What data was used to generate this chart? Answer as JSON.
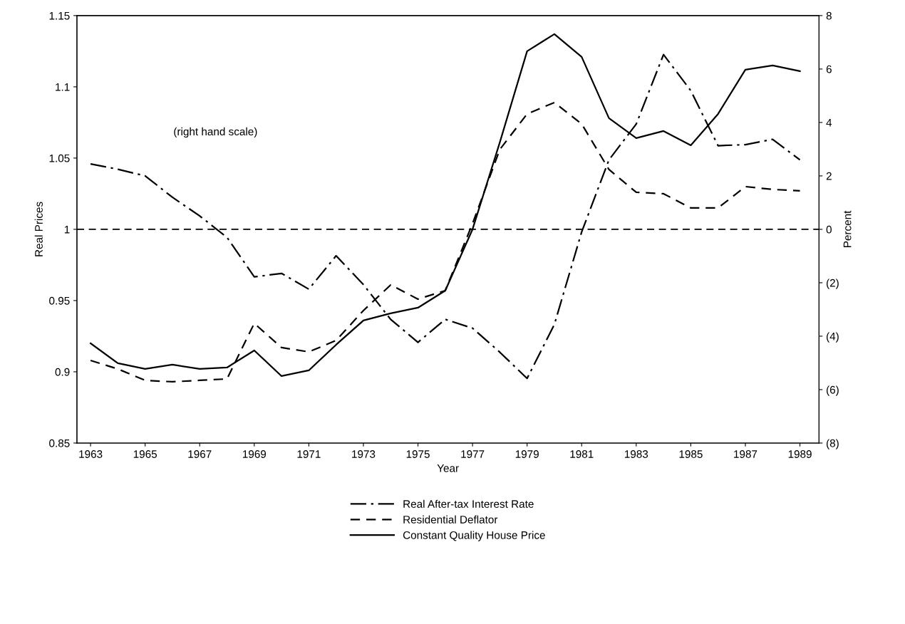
{
  "chart_data": {
    "type": "line",
    "xlabel": "Year",
    "ylabel": "Real Prices",
    "y2label": "Percent",
    "x": [
      1963,
      1964,
      1965,
      1966,
      1967,
      1968,
      1969,
      1970,
      1971,
      1972,
      1973,
      1974,
      1975,
      1976,
      1977,
      1978,
      1979,
      1980,
      1981,
      1982,
      1983,
      1984,
      1985,
      1986,
      1987,
      1988,
      1989
    ],
    "series": [
      {
        "name": "Real After-tax Interest Rate",
        "color": "#000000",
        "line_style": "dashdot",
        "axis": "y2",
        "values": [
          2.45,
          2.25,
          2.0,
          1.2,
          0.5,
          -0.3,
          -1.78,
          -1.65,
          -2.24,
          -0.99,
          -2.07,
          -3.37,
          -4.23,
          -3.37,
          -3.7,
          -4.6,
          -5.58,
          -3.56,
          -0.1,
          2.6,
          3.94,
          6.54,
          5.19,
          3.13,
          3.17,
          3.37,
          2.6
        ]
      },
      {
        "name": "Residential Deflator",
        "color": "#000000",
        "line_style": "dashed",
        "values": [
          0.908,
          0.902,
          0.894,
          0.893,
          0.894,
          0.895,
          0.934,
          0.917,
          0.914,
          0.922,
          0.943,
          0.961,
          0.951,
          0.957,
          1.004,
          1.056,
          1.081,
          1.089,
          1.074,
          1.042,
          1.026,
          1.025,
          1.015,
          1.015,
          1.03,
          1.028,
          1.027
        ]
      },
      {
        "name": "Constant Quality House Price",
        "color": "#000000",
        "line_style": "solid",
        "values": [
          0.92,
          0.906,
          0.902,
          0.905,
          0.902,
          0.903,
          0.915,
          0.897,
          0.901,
          0.919,
          0.936,
          0.941,
          0.945,
          0.957,
          1.0,
          1.061,
          1.125,
          1.137,
          1.121,
          1.078,
          1.064,
          1.069,
          1.059,
          1.081,
          1.112,
          1.115,
          1.111
        ]
      }
    ],
    "xlim": [
      1962.5,
      1989.7
    ],
    "xticks": [
      1963,
      1965,
      1967,
      1969,
      1971,
      1973,
      1975,
      1977,
      1979,
      1981,
      1983,
      1985,
      1987,
      1989
    ],
    "ylim": [
      0.85,
      1.15
    ],
    "yticks": [
      0.85,
      0.9,
      0.95,
      1,
      1.05,
      1.1,
      1.15
    ],
    "y2lim": [
      -8,
      8
    ],
    "y2ticks": [
      {
        "value": -8,
        "label": "(8)"
      },
      {
        "value": -6,
        "label": "(6)"
      },
      {
        "value": -4,
        "label": "(4)"
      },
      {
        "value": -2,
        "label": "(2)"
      },
      0,
      2,
      4,
      6,
      8
    ],
    "ref_lines": [
      {
        "axis": "y",
        "value": 1,
        "label": null,
        "color": "#000000",
        "line_style": "dashed"
      }
    ],
    "annotations": [
      "(right hand scale)"
    ],
    "legend": "bottom",
    "grid": false,
    "marker": "none"
  }
}
